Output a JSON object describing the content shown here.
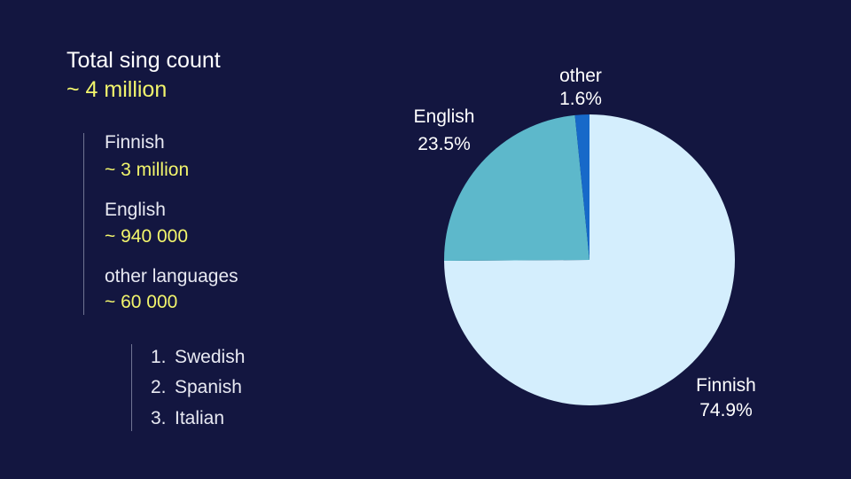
{
  "summary": {
    "total_label": "Total sing count",
    "total_value": "~ 4 million",
    "breakdown": [
      {
        "label": "Finnish",
        "value": "~ 3 million"
      },
      {
        "label": "English",
        "value": "~ 940 000"
      },
      {
        "label": "other languages",
        "value": "~ 60 000"
      }
    ],
    "other_ranking": [
      {
        "num": "1.",
        "label": "Swedish"
      },
      {
        "num": "2.",
        "label": "Spanish"
      },
      {
        "num": "3.",
        "label": "Italian"
      }
    ]
  },
  "chart_data": {
    "type": "pie",
    "title": "",
    "slices": [
      {
        "label": "Finnish",
        "value": 74.9,
        "display": "74.9%",
        "color": "#d4eefd"
      },
      {
        "label": "English",
        "value": 23.5,
        "display": "23.5%",
        "color": "#5db8cb"
      },
      {
        "label": "other",
        "value": 1.6,
        "display": "1.6%",
        "color": "#1769c9"
      }
    ],
    "start_angle_deg": 0,
    "direction": "clockwise",
    "labels_outside": true,
    "legend": "none"
  }
}
